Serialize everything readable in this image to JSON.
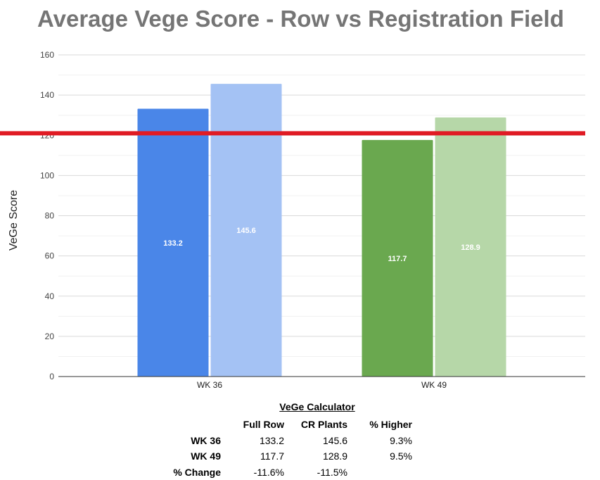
{
  "chart_data": {
    "type": "bar",
    "title": "Average Vege Score - Row vs Registration Field",
    "ylabel": "VeGe Score",
    "xlabel": "",
    "ylim": [
      0,
      160
    ],
    "yticks": [
      0,
      20,
      40,
      60,
      80,
      100,
      120,
      140,
      160
    ],
    "categories": [
      "WK 36",
      "WK 49"
    ],
    "series": [
      {
        "values": [
          133.2,
          117.7
        ]
      },
      {
        "values": [
          145.6,
          128.9
        ]
      }
    ],
    "bar_colors": [
      [
        "#4a86e8",
        "#a4c2f4"
      ],
      [
        "#6aa84f",
        "#b6d7a8"
      ]
    ],
    "reference_line": {
      "value": 121,
      "color": "#e01b24"
    },
    "grid": true,
    "legend": "none"
  },
  "calculator": {
    "title": "VeGe Calculator",
    "headers": [
      "",
      "Full Row",
      "CR Plants",
      "% Higher"
    ],
    "rows": [
      [
        "WK 36",
        "133.2",
        "145.6",
        "9.3%"
      ],
      [
        "WK 49",
        "117.7",
        "128.9",
        "9.5%"
      ],
      [
        "% Change",
        "-11.6%",
        "-11.5%",
        ""
      ]
    ]
  }
}
